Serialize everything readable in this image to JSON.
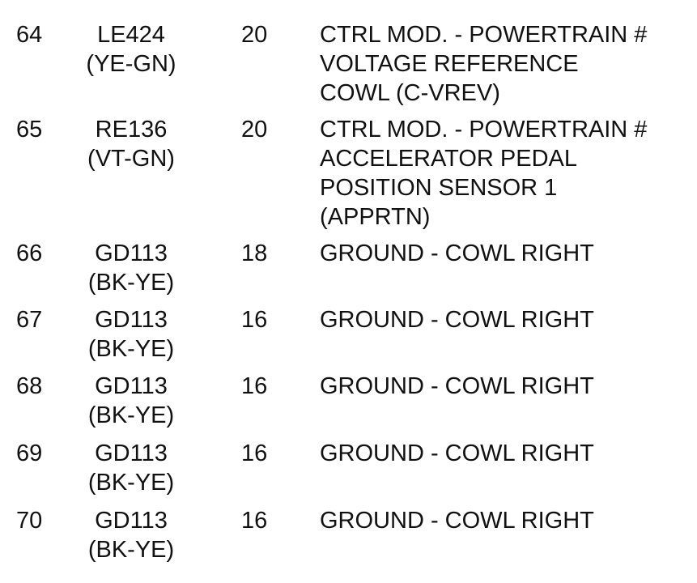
{
  "rows": [
    {
      "pin": "64",
      "wire": [
        "LE424",
        "(YE-GN)"
      ],
      "gauge": "20",
      "desc": [
        "CTRL MOD. - POWERTRAIN #",
        "VOLTAGE REFERENCE",
        "COWL (C-VREV)"
      ]
    },
    {
      "pin": "65",
      "wire": [
        "RE136",
        "(VT-GN)"
      ],
      "gauge": "20",
      "desc": [
        "CTRL MOD. - POWERTRAIN #",
        "ACCELERATOR PEDAL",
        "POSITION SENSOR 1",
        "(APPRTN)"
      ]
    },
    {
      "pin": "66",
      "wire": [
        "GD113",
        "(BK-YE)"
      ],
      "gauge": "18",
      "desc": [
        "GROUND - COWL RIGHT"
      ]
    },
    {
      "pin": "67",
      "wire": [
        "GD113",
        "(BK-YE)"
      ],
      "gauge": "16",
      "desc": [
        "GROUND - COWL RIGHT"
      ]
    },
    {
      "pin": "68",
      "wire": [
        "GD113",
        "(BK-YE)"
      ],
      "gauge": "16",
      "desc": [
        "GROUND - COWL RIGHT"
      ]
    },
    {
      "pin": "69",
      "wire": [
        "GD113",
        "(BK-YE)"
      ],
      "gauge": "16",
      "desc": [
        "GROUND - COWL RIGHT"
      ]
    },
    {
      "pin": "70",
      "wire": [
        "GD113",
        "(BK-YE)"
      ],
      "gauge": "16",
      "desc": [
        "GROUND - COWL RIGHT"
      ]
    }
  ]
}
